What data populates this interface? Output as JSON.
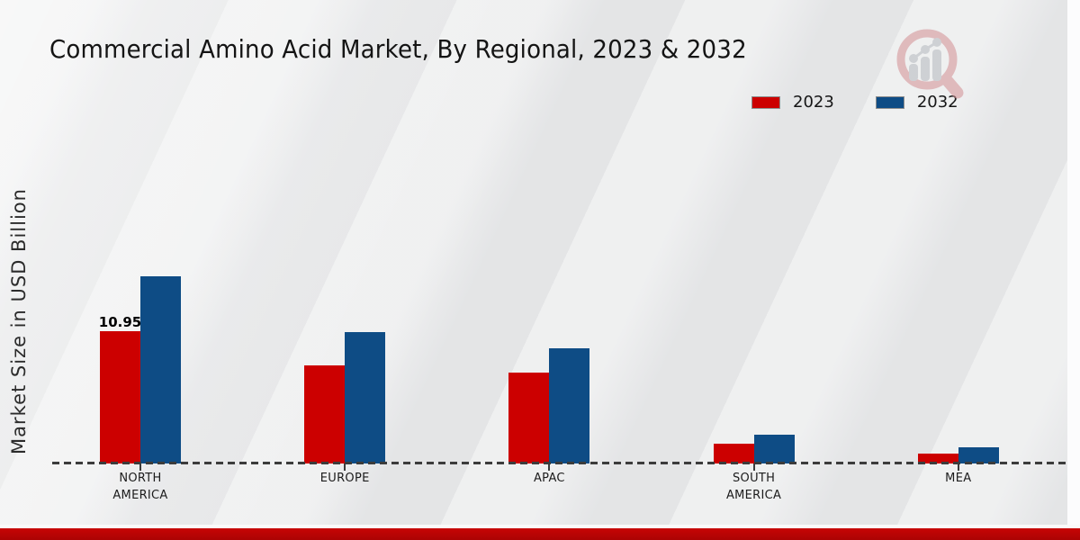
{
  "page": {
    "title": "Commercial Amino Acid Market, By Regional, 2023 & 2032"
  },
  "chart_data": {
    "type": "bar",
    "title": "Commercial Amino Acid Market, By Regional, 2023 & 2032",
    "xlabel": "",
    "ylabel": "Market Size in USD Billion",
    "units": "USD Billion",
    "categories": [
      "NORTH AMERICA",
      "EUROPE",
      "APAC",
      "SOUTH AMERICA",
      "MEA"
    ],
    "series": [
      {
        "name": "2023",
        "color": "#cc0000",
        "values": [
          10.95,
          8.1,
          7.5,
          1.65,
          0.8
        ]
      },
      {
        "name": "2032",
        "color": "#0e4c85",
        "values": [
          15.5,
          10.9,
          9.55,
          2.4,
          1.35
        ]
      }
    ],
    "data_labels": [
      {
        "series": "2023",
        "category": "NORTH AMERICA",
        "text": "10.95"
      }
    ],
    "ylim": [
      0,
      16
    ],
    "grid": false,
    "baseline_style": "dashed",
    "legend_position": "top-right"
  },
  "branding": {
    "logo_icon": "magnifier-bar-chart-logo",
    "footer_bar_color": "#c00404"
  }
}
